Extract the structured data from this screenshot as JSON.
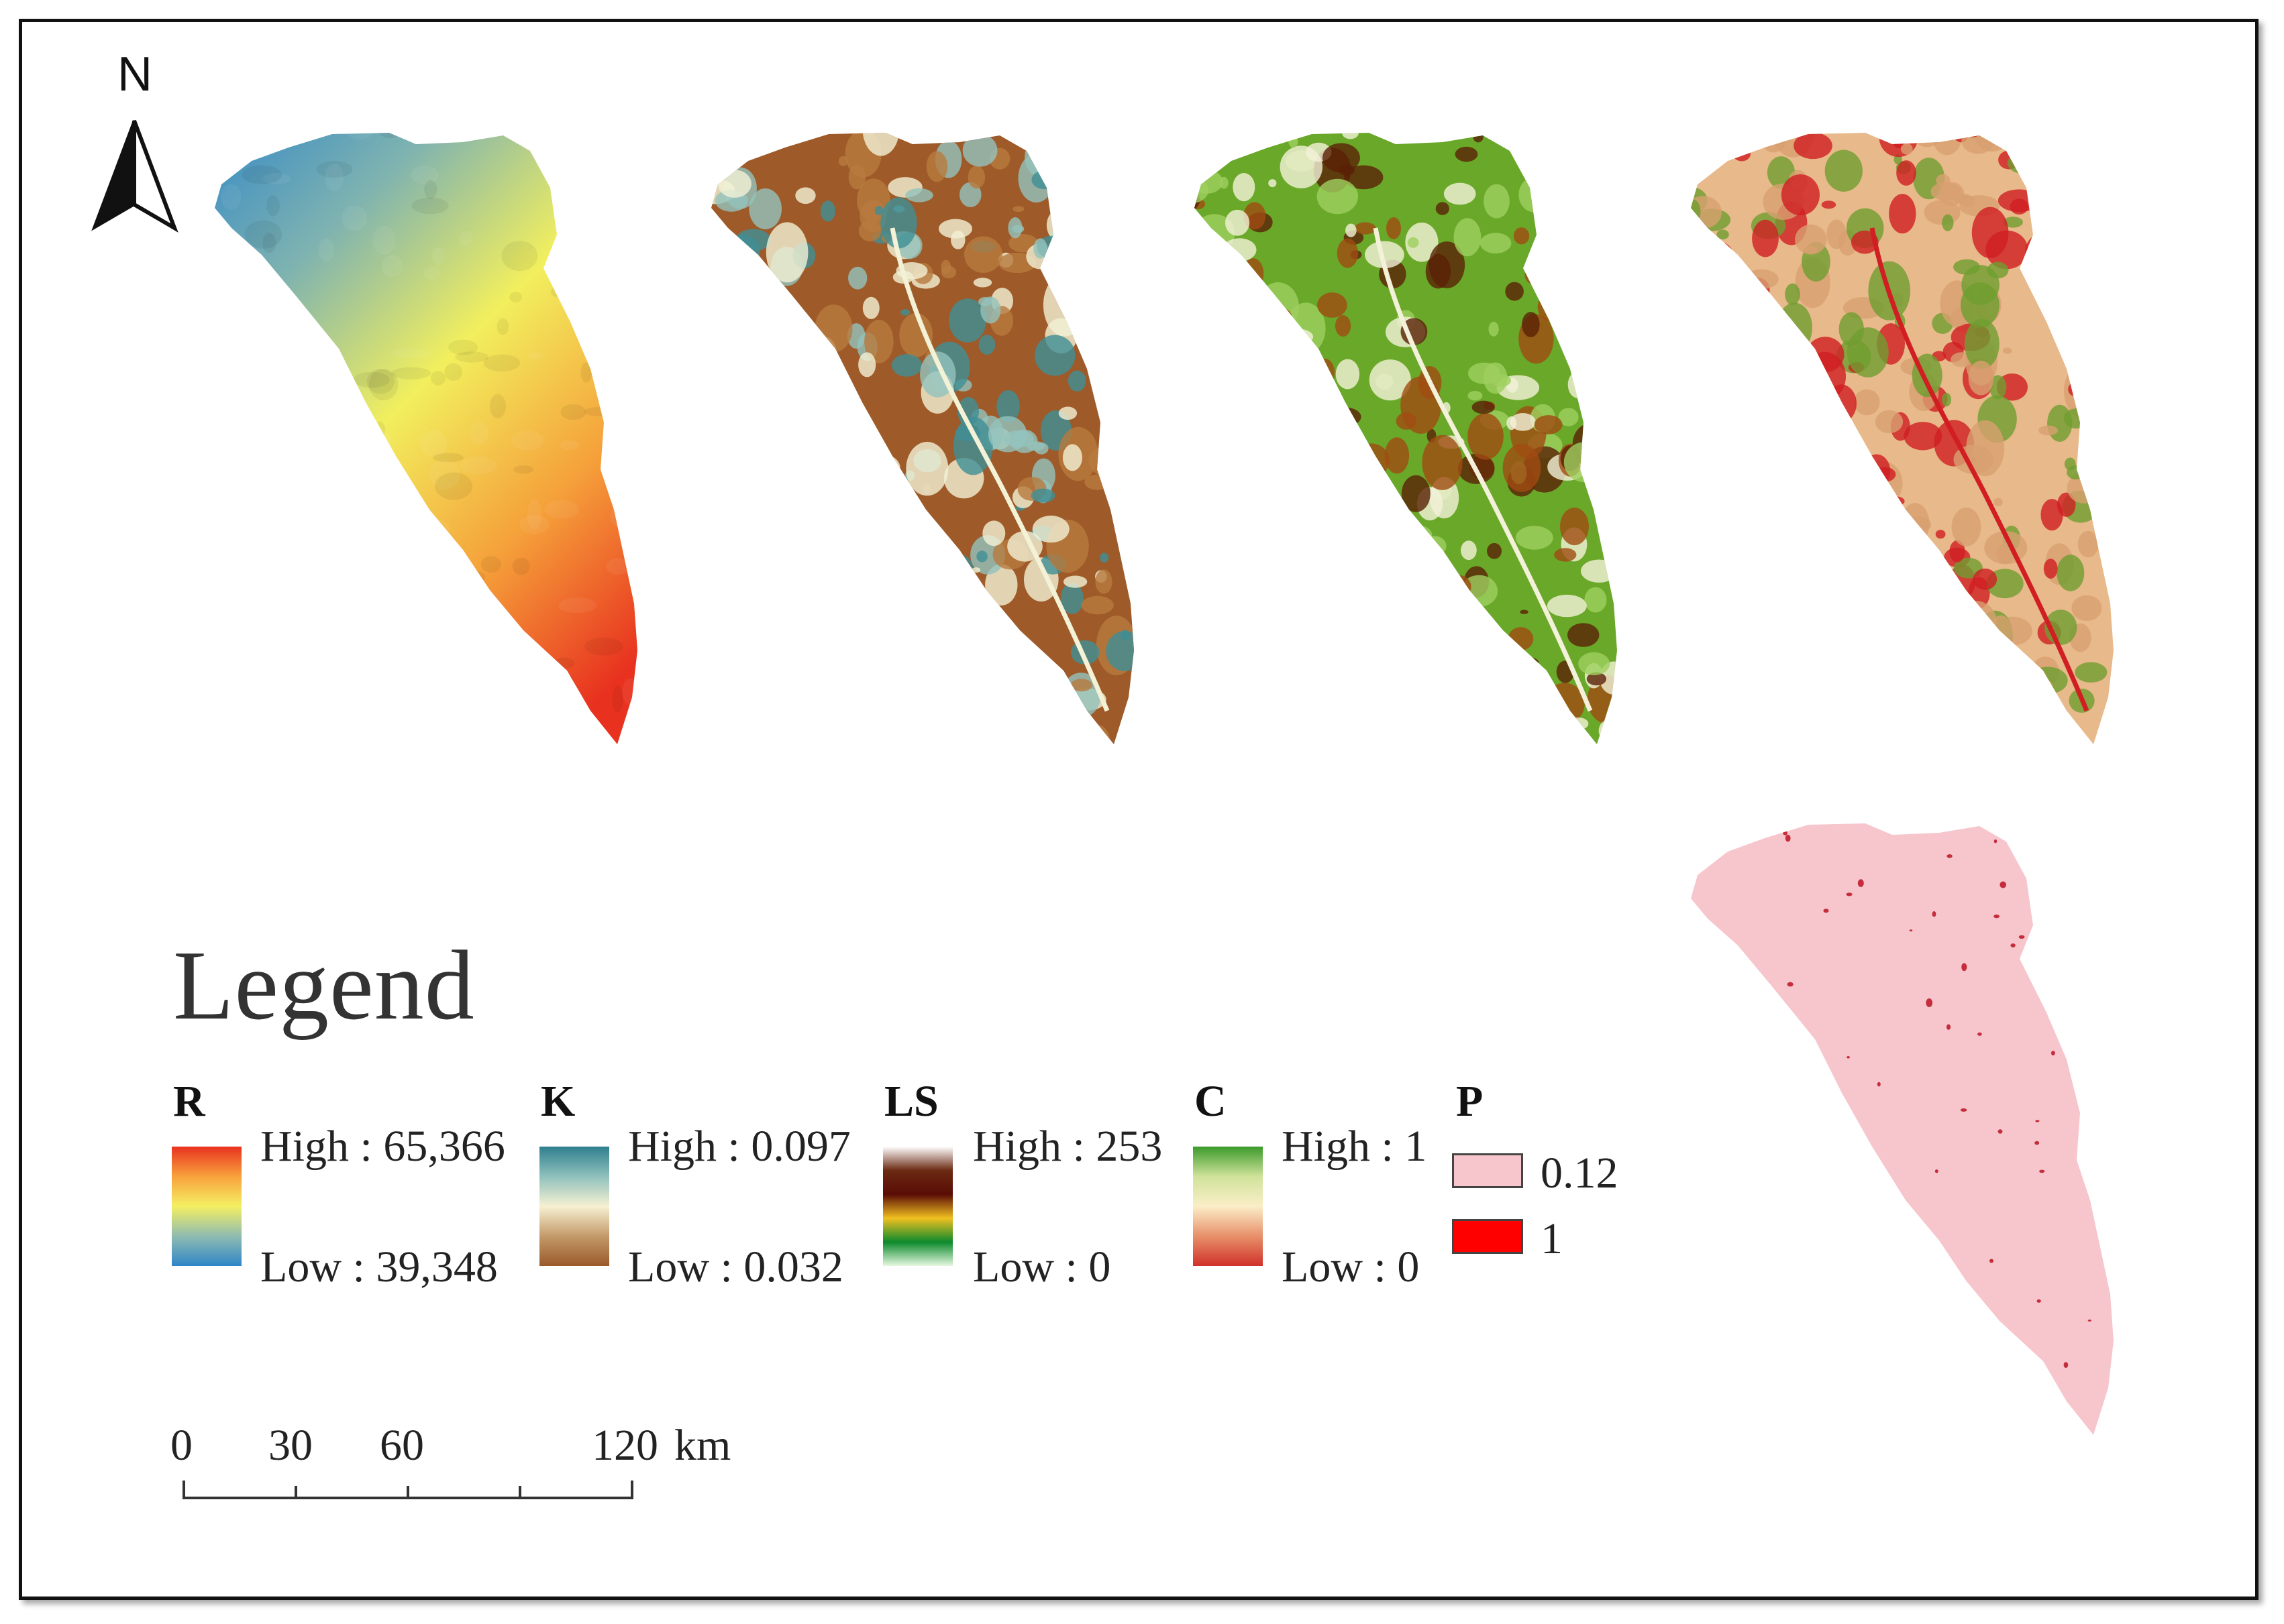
{
  "north_arrow": {
    "letter": "N"
  },
  "maps": [
    {
      "factor": "R",
      "style": "gradient",
      "colors": [
        "#2f86c8",
        "#7fb3b0",
        "#f2ef5e",
        "#f5a13a",
        "#e8321f"
      ]
    },
    {
      "factor": "K",
      "style": "classes",
      "colors": [
        "#9e5a28",
        "#b87a3f",
        "#93c3bd",
        "#3f8f96",
        "#f3f1d6"
      ]
    },
    {
      "factor": "LS",
      "style": "classes",
      "colors": [
        "#6aa829",
        "#9fd05f",
        "#a04b12",
        "#5a2106",
        "#f4f1da"
      ]
    },
    {
      "factor": "C",
      "style": "classes",
      "colors": [
        "#e8b98a",
        "#d8a070",
        "#6e9d2f",
        "#d01e22"
      ]
    },
    {
      "factor": "P",
      "style": "classes",
      "colors": [
        "#f6c6cc",
        "#c01c2c"
      ]
    }
  ],
  "legend": {
    "title": "Legend",
    "items": [
      {
        "letter": "R",
        "high": "High : 65,366",
        "low": "Low : 39,348",
        "ramp": [
          "#e8321f",
          "#f8a23c",
          "#f4ef62",
          "#8fbcb0",
          "#2f86c8"
        ]
      },
      {
        "letter": "K",
        "high": "High : 0.097",
        "low": "Low : 0.032",
        "ramp": [
          "#2e7f8f",
          "#8fc0bc",
          "#f6f1d3",
          "#c49a6a",
          "#9a5a2a"
        ]
      },
      {
        "letter": "LS",
        "high": "High : 253",
        "low": "Low : 0",
        "ramp": [
          "#ffffff",
          "#6b2a12",
          "#5a0c05",
          "#f0c020",
          "#0c8a2c",
          "#e6f8e0"
        ]
      },
      {
        "letter": "C",
        "high": "High : 1",
        "low": "Low : 0",
        "ramp": [
          "#3c9a2c",
          "#cfe39a",
          "#fbeec8",
          "#e8906a",
          "#d0322a"
        ]
      }
    ],
    "p": {
      "letter": "P",
      "classes": [
        {
          "label": "0.12",
          "color": "#f6c6cc"
        },
        {
          "label": "1",
          "color": "#ff0000"
        }
      ]
    }
  },
  "scale_bar": {
    "labels": [
      "0",
      "30",
      "60",
      "120"
    ],
    "unit": "km"
  }
}
